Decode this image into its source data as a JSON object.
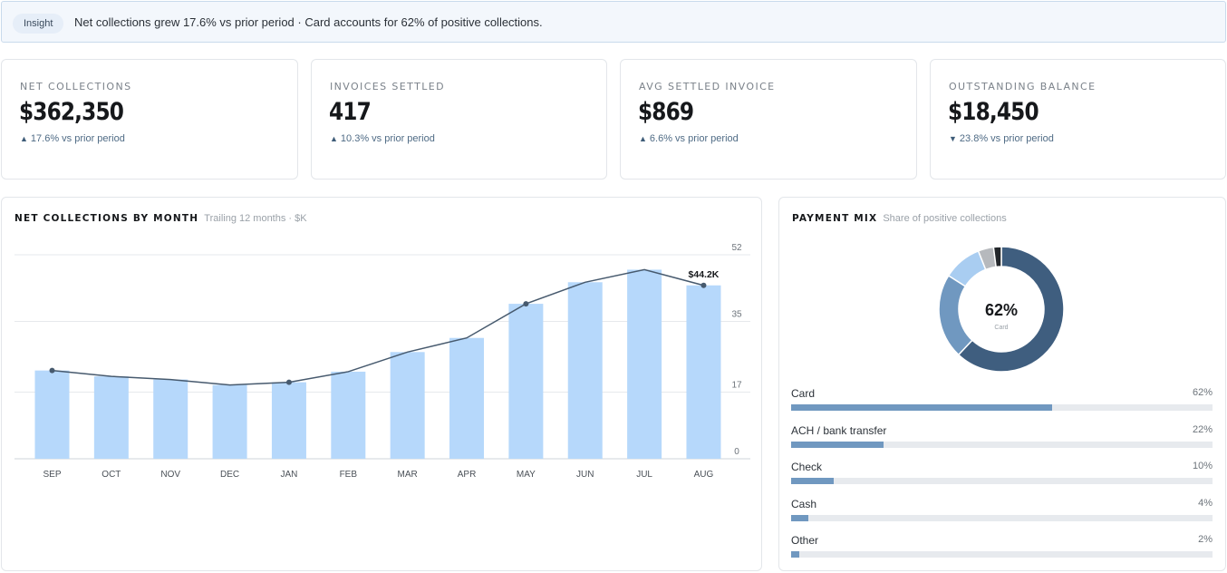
{
  "insight": {
    "pill": "Insight",
    "message": "Net collections grew 17.6% vs prior period · Card accounts for 62% of positive collections."
  },
  "kpis": [
    {
      "label": "NET COLLECTIONS",
      "value": "$362,350",
      "arrow": "▲",
      "delta": "17.6% vs prior period"
    },
    {
      "label": "INVOICES SETTLED",
      "value": "417",
      "arrow": "▲",
      "delta": "10.3% vs prior period"
    },
    {
      "label": "AVG SETTLED INVOICE",
      "value": "$869",
      "arrow": "▲",
      "delta": "6.6% vs prior period"
    },
    {
      "label": "OUTSTANDING BALANCE",
      "value": "$18,450",
      "arrow": "▼",
      "delta": "23.8% vs prior period"
    }
  ],
  "colors": {
    "bar": "#b6d8fb",
    "line": "#475a6e",
    "card": "#3f5e7f",
    "ach": "#7098c0",
    "check": "#a9cdf1",
    "cash": "#b6b9bd",
    "other": "#23272b",
    "mix_bar": "#7098c0"
  },
  "chart_data": [
    {
      "type": "bar",
      "title": "NET COLLECTIONS BY MONTH",
      "subtitle": "Trailing 12 months · $K",
      "categories": [
        "SEP",
        "OCT",
        "NOV",
        "DEC",
        "JAN",
        "FEB",
        "MAR",
        "APR",
        "MAY",
        "JUN",
        "JUL",
        "AUG"
      ],
      "series": [
        {
          "values": [
            22.5,
            21.0,
            20.2,
            18.8,
            19.5,
            22.2,
            27.2,
            30.8,
            39.5,
            45.0,
            48.2,
            44.2
          ]
        }
      ],
      "line": [
        22.5,
        21.0,
        20.2,
        18.8,
        19.5,
        22.2,
        27.2,
        30.8,
        39.5,
        45.0,
        48.2,
        44.2
      ],
      "line_markers": [
        0,
        4,
        8,
        11
      ],
      "annotation": "$44.2K",
      "ylim": [
        0,
        52
      ],
      "yticks": [
        0,
        17,
        35,
        52
      ],
      "grid": true,
      "legend": "none"
    },
    {
      "type": "pie",
      "title": "PAYMENT MIX",
      "subtitle": "Share of positive collections",
      "center_value": "62%",
      "center_label": "Card",
      "labels": [
        "Card",
        "ACH / bank transfer",
        "Check",
        "Cash",
        "Other"
      ],
      "values": [
        62,
        22,
        10,
        4,
        2
      ],
      "value_labels": [
        "62%",
        "22%",
        "10%",
        "4%",
        "2%"
      ]
    }
  ]
}
